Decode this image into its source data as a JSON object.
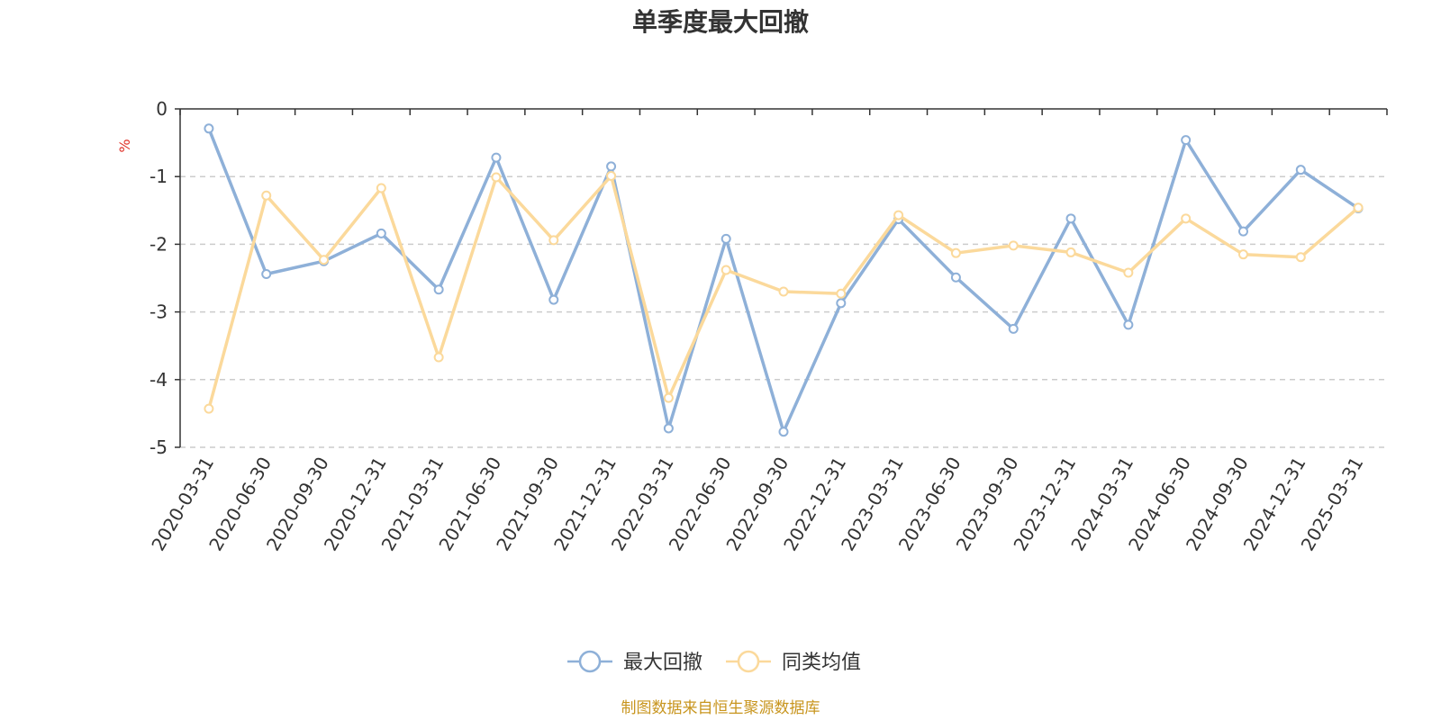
{
  "chart_data": {
    "type": "line",
    "title": "单季度最大回撤",
    "unit_label": "%",
    "ylim": [
      -5,
      0
    ],
    "yticks": [
      0,
      -1,
      -2,
      -3,
      -4,
      -5
    ],
    "y_grid": "dashed",
    "legend_position": "bottom-center",
    "categories": [
      "2020-03-31",
      "2020-06-30",
      "2020-09-30",
      "2020-12-31",
      "2021-03-31",
      "2021-06-30",
      "2021-09-30",
      "2021-12-31",
      "2022-03-31",
      "2022-06-30",
      "2022-09-30",
      "2022-12-31",
      "2023-03-31",
      "2023-06-30",
      "2023-09-30",
      "2023-12-31",
      "2024-03-31",
      "2024-06-30",
      "2024-09-30",
      "2024-12-31",
      "2025-03-31"
    ],
    "series": [
      {
        "name": "最大回撤",
        "color": "#8eb0d8",
        "values": [
          -0.29,
          -2.44,
          -2.25,
          -1.84,
          -2.67,
          -0.72,
          -2.82,
          -0.85,
          -4.72,
          -1.92,
          -4.77,
          -2.87,
          -1.63,
          -2.49,
          -3.25,
          -1.62,
          -3.19,
          -0.46,
          -1.81,
          -0.9,
          -1.47
        ]
      },
      {
        "name": "同类均值",
        "color": "#fbd99b",
        "values": [
          -4.43,
          -1.28,
          -2.23,
          -1.17,
          -3.67,
          -1.01,
          -1.94,
          -0.99,
          -4.27,
          -2.38,
          -2.7,
          -2.73,
          -1.57,
          -2.13,
          -2.02,
          -2.12,
          -2.42,
          -1.62,
          -2.15,
          -2.19,
          -1.46
        ]
      }
    ]
  },
  "footer": {
    "source": "制图数据来自恒生聚源数据库"
  }
}
